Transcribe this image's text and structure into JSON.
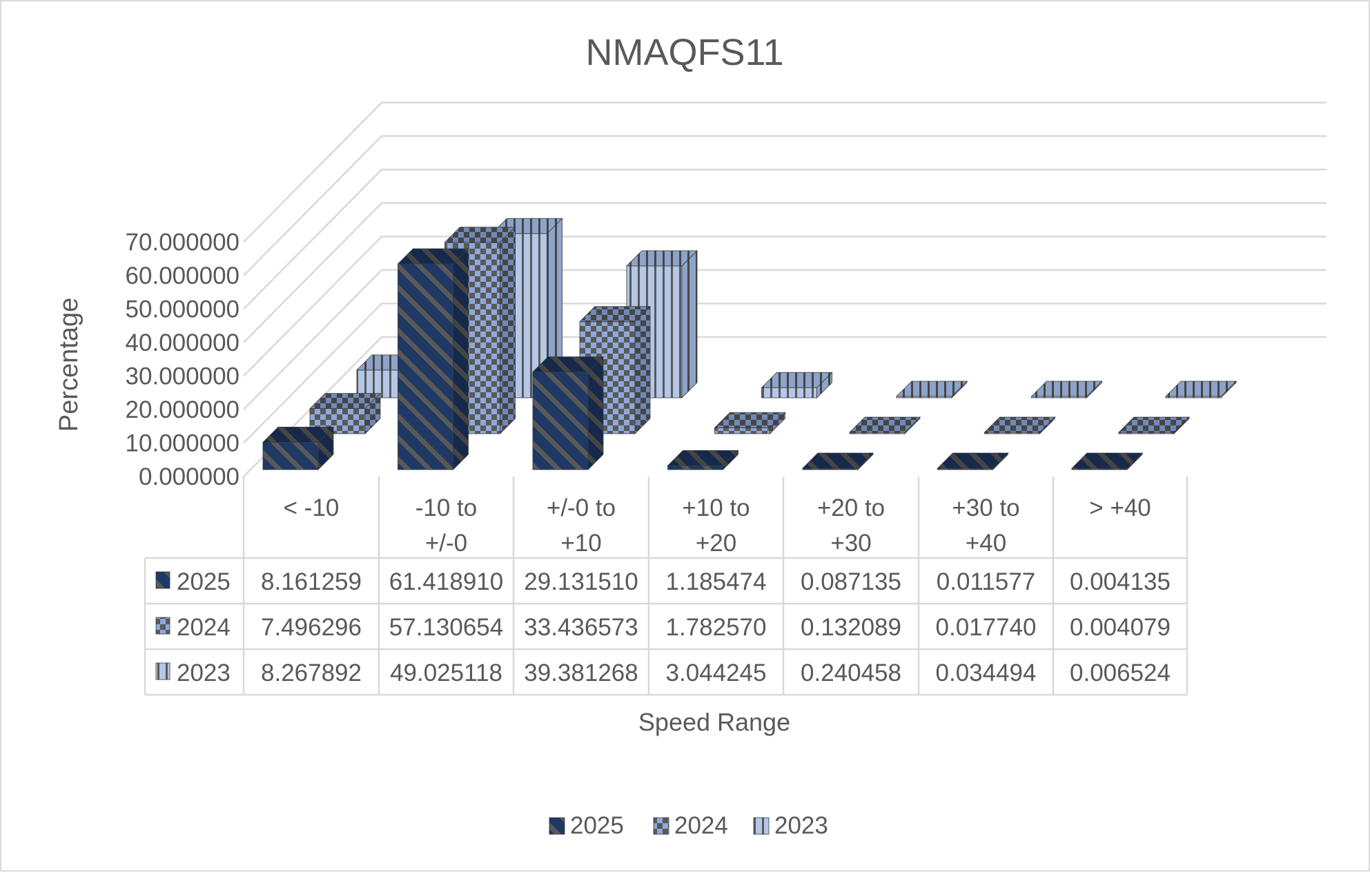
{
  "chart_data": {
    "type": "bar",
    "title": "NMAQFS11",
    "xlabel": "Speed Range",
    "ylabel": "Percentage",
    "ylim": [
      0,
      70
    ],
    "ytick_step": 10,
    "ytick_labels": [
      "0.000000",
      "10.000000",
      "20.000000",
      "30.000000",
      "40.000000",
      "50.000000",
      "60.000000",
      "70.000000"
    ],
    "categories": [
      "< -10",
      "-10 to +/-0",
      "+/-0 to +10",
      "+10 to +20",
      "+20 to +30",
      "+30 to +40",
      "> +40"
    ],
    "category_lines": [
      [
        "< -10"
      ],
      [
        "-10 to",
        "+/-0"
      ],
      [
        "+/-0 to",
        "+10"
      ],
      [
        "+10 to",
        "+20"
      ],
      [
        "+20 to",
        "+30"
      ],
      [
        "+30 to",
        "+40"
      ],
      [
        "> +40"
      ]
    ],
    "series": [
      {
        "name": "2025",
        "values": [
          8.161259,
          61.41891,
          29.13151,
          1.185474,
          0.087135,
          0.011577,
          0.004135
        ],
        "value_labels": [
          "8.161259",
          "61.418910",
          "29.131510",
          "1.185474",
          "0.087135",
          "0.011577",
          "0.004135"
        ],
        "color": "#1F3864",
        "pattern": "diagonal-stripes"
      },
      {
        "name": "2024",
        "values": [
          7.496296,
          57.130654,
          33.436573,
          1.78257,
          0.132089,
          0.01774,
          0.004079
        ],
        "value_labels": [
          "7.496296",
          "57.130654",
          "33.436573",
          "1.782570",
          "0.132089",
          "0.017740",
          "0.004079"
        ],
        "color": "#8EA9DB",
        "pattern": "checkerboard"
      },
      {
        "name": "2023",
        "values": [
          8.267892,
          49.025118,
          39.381268,
          3.044245,
          0.240458,
          0.034494,
          0.006524
        ],
        "value_labels": [
          "8.267892",
          "49.025118",
          "39.381268",
          "3.044245",
          "0.240458",
          "0.034494",
          "0.006524"
        ],
        "color": "#B4C7E7",
        "pattern": "vertical-stripes"
      }
    ],
    "legend_position": "bottom",
    "data_table": true,
    "grid": true
  }
}
